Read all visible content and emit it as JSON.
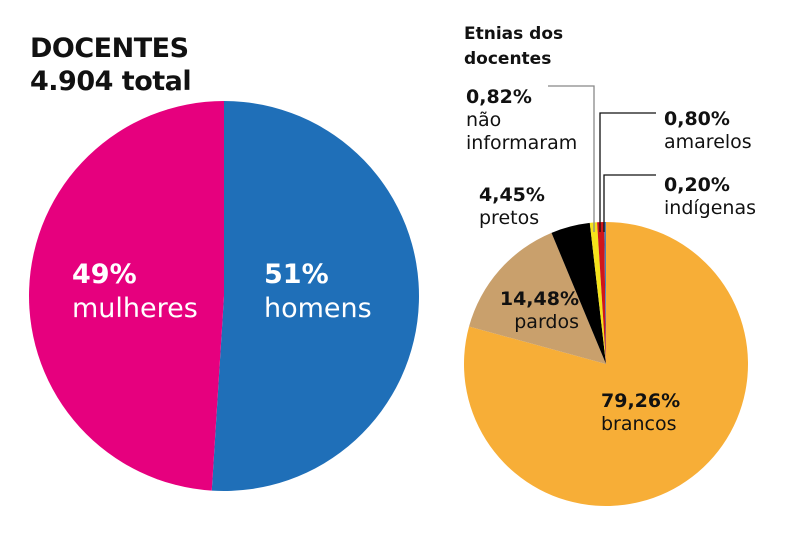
{
  "chart_data": [
    {
      "type": "pie",
      "title": "DOCENTES",
      "subtitle": "4.904 total",
      "categories": [
        "homens",
        "mulheres"
      ],
      "values": [
        51,
        49
      ],
      "labels": [
        "51%",
        "49%"
      ],
      "colors": [
        "#1f6fb8",
        "#e6007e"
      ]
    },
    {
      "type": "pie",
      "title": "Etnias dos docentes",
      "categories": [
        "brancos",
        "pardos",
        "pretos",
        "não informaram",
        "amarelos",
        "indígenas"
      ],
      "values": [
        79.26,
        14.48,
        4.45,
        0.82,
        0.8,
        0.2
      ],
      "labels": [
        "79,26%",
        "14,48%",
        "4,45%",
        "0,82%",
        "0,80%",
        "0,20%"
      ],
      "colors": [
        "#f7ae37",
        "#c9a06c",
        "#000000",
        "#f5e21a",
        "#d0161b",
        "#4a7fb4"
      ]
    }
  ],
  "left": {
    "title": "DOCENTES",
    "total": "4.904 total"
  },
  "right": {
    "title_line1": "Etnias dos",
    "title_line2": "docentes"
  }
}
